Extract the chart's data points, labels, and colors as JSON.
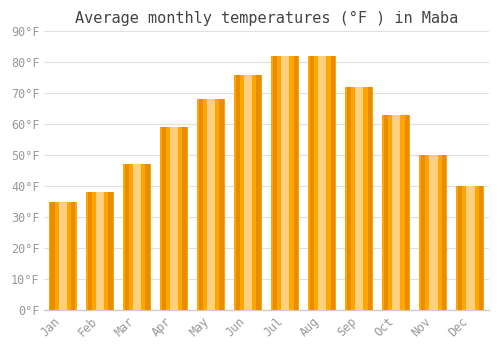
{
  "title": "Average monthly temperatures (°F ) in Maba",
  "months": [
    "Jan",
    "Feb",
    "Mar",
    "Apr",
    "May",
    "Jun",
    "Jul",
    "Aug",
    "Sep",
    "Oct",
    "Nov",
    "Dec"
  ],
  "values": [
    35,
    38,
    47,
    59,
    68,
    76,
    82,
    82,
    72,
    63,
    50,
    40
  ],
  "bar_color_main": "#FFA500",
  "bar_color_light": "#FFD080",
  "bar_color_dark": "#E88C00",
  "background_color": "#FFFFFF",
  "grid_color": "#E0E0E0",
  "ylim": [
    0,
    90
  ],
  "yticks": [
    0,
    10,
    20,
    30,
    40,
    50,
    60,
    70,
    80,
    90
  ],
  "title_fontsize": 11,
  "tick_fontsize": 8.5,
  "font_family": "monospace",
  "tick_color": "#999999",
  "title_color": "#444444"
}
